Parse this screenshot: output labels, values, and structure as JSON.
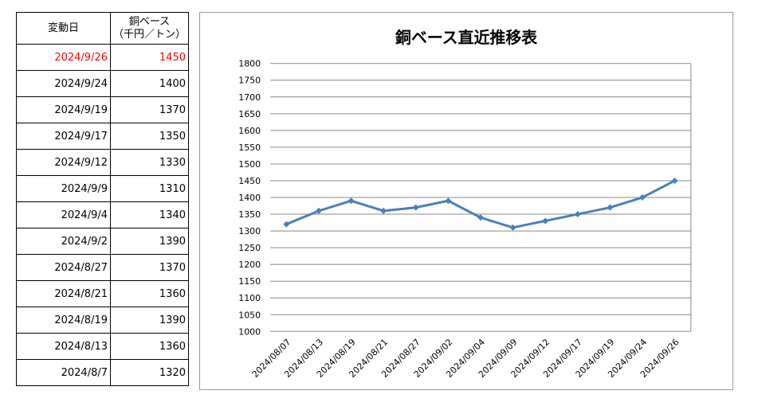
{
  "table": {
    "headers": [
      "変動日",
      "銅ベース",
      "（千円／トン）"
    ],
    "rows": [
      [
        "2024/9/26",
        "1450"
      ],
      [
        "2024/9/24",
        "1400"
      ],
      [
        "2024/9/19",
        "1370"
      ],
      [
        "2024/9/17",
        "1350"
      ],
      [
        "2024/9/12",
        "1330"
      ],
      [
        "2024/9/9",
        "1310"
      ],
      [
        "2024/9/4",
        "1340"
      ],
      [
        "2024/9/2",
        "1390"
      ],
      [
        "2024/8/27",
        "1370"
      ],
      [
        "2024/8/21",
        "1360"
      ],
      [
        "2024/8/19",
        "1390"
      ],
      [
        "2024/8/13",
        "1360"
      ],
      [
        "2024/8/7",
        "1320"
      ]
    ],
    "highlight_color": "#ff0000"
  },
  "chart_data": {
    "type": "line",
    "title": "銅ベース直近推移表",
    "categories": [
      "2024/08/07",
      "2024/08/13",
      "2024/08/19",
      "2024/08/21",
      "2024/08/27",
      "2024/09/02",
      "2024/09/04",
      "2024/09/09",
      "2024/09/12",
      "2024/09/17",
      "2024/09/19",
      "2024/09/24",
      "2024/09/26"
    ],
    "values": [
      1320,
      1360,
      1390,
      1360,
      1370,
      1390,
      1340,
      1310,
      1330,
      1350,
      1370,
      1400,
      1450
    ],
    "ylim": [
      1000,
      1800
    ],
    "ystep": 50,
    "grid": true,
    "legend": "none",
    "color": "#4a7ebb"
  }
}
